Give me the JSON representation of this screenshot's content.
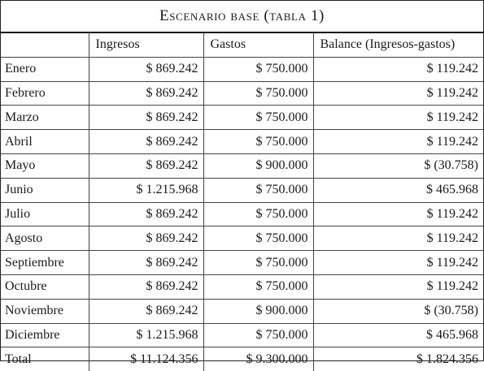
{
  "table": {
    "title": "Escenario base (tabla 1)",
    "headers": [
      "",
      "Ingresos",
      "Gastos",
      "Balance (Ingresos-gastos)"
    ],
    "rows": [
      {
        "month": "Enero",
        "ingresos": "$ 869.242",
        "gastos": "$ 750.000",
        "balance": "$ 119.242"
      },
      {
        "month": "Febrero",
        "ingresos": "$ 869.242",
        "gastos": "$ 750.000",
        "balance": "$ 119.242"
      },
      {
        "month": "Marzo",
        "ingresos": "$ 869.242",
        "gastos": "$ 750.000",
        "balance": "$ 119.242"
      },
      {
        "month": "Abril",
        "ingresos": "$ 869.242",
        "gastos": "$ 750.000",
        "balance": "$ 119.242"
      },
      {
        "month": "Mayo",
        "ingresos": "$ 869.242",
        "gastos": "$ 900.000",
        "balance": "$ (30.758)"
      },
      {
        "month": "Junio",
        "ingresos": "$ 1.215.968",
        "gastos": "$ 750.000",
        "balance": "$ 465.968"
      },
      {
        "month": "Julio",
        "ingresos": "$ 869.242",
        "gastos": "$ 750.000",
        "balance": "$ 119.242"
      },
      {
        "month": "Agosto",
        "ingresos": "$ 869.242",
        "gastos": "$ 750.000",
        "balance": "$ 119.242"
      },
      {
        "month": "Septiembre",
        "ingresos": "$ 869.242",
        "gastos": "$ 750.000",
        "balance": "$ 119.242"
      },
      {
        "month": "Octubre",
        "ingresos": "$ 869.242",
        "gastos": "$ 750.000",
        "balance": "$ 119.242"
      },
      {
        "month": "Noviembre",
        "ingresos": "$ 869.242",
        "gastos": "$ 900.000",
        "balance": "$ (30.758)"
      },
      {
        "month": "Diciembre",
        "ingresos": "$ 1.215.968",
        "gastos": "$ 750.000",
        "balance": "$ 465.968"
      },
      {
        "month": "Total",
        "ingresos": "$ 11.124.356",
        "gastos": "$ 9.300.000",
        "balance": "$ 1.824.356"
      }
    ]
  }
}
